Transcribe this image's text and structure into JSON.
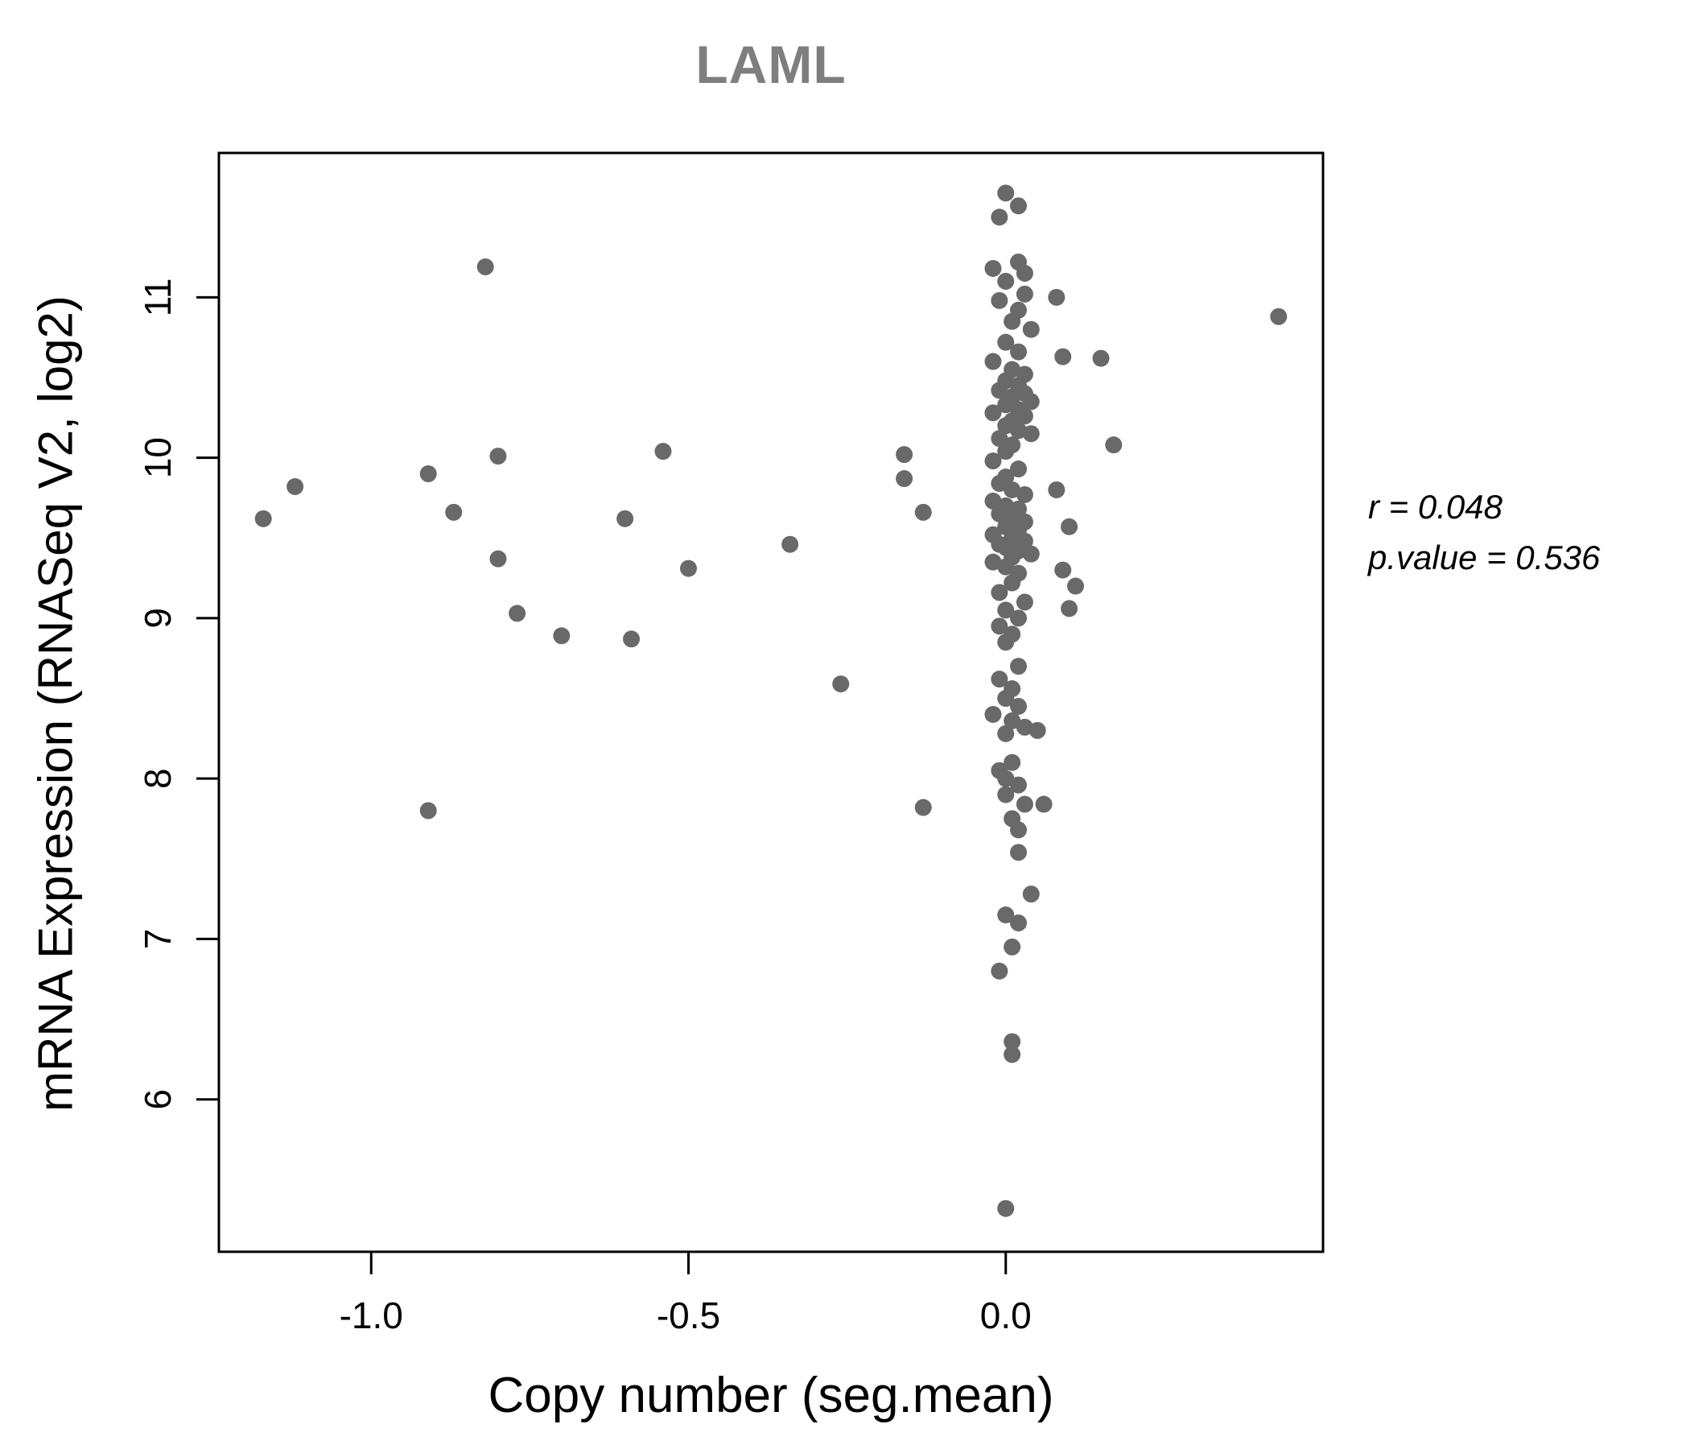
{
  "title": "LAML",
  "annotation": {
    "r_label": "r = 0.048",
    "p_label": "p.value = 0.536"
  },
  "style": {
    "point_color": "#696969",
    "title_color": "#7e7e7e",
    "axis_color": "#000000",
    "background": "#ffffff"
  },
  "chart_data": {
    "type": "scatter",
    "title": "LAML",
    "xlabel": "Copy number (seg.mean)",
    "ylabel": "mRNA Expression (RNASeq V2, log2)",
    "xlim": [
      -1.24,
      0.5
    ],
    "ylim": [
      5.05,
      11.9
    ],
    "x_ticks": [
      -1.0,
      -0.5,
      0.0
    ],
    "x_tick_labels": [
      "-1.0",
      "-0.5",
      "0.0"
    ],
    "y_ticks": [
      6,
      7,
      8,
      9,
      10,
      11
    ],
    "y_tick_labels": [
      "6",
      "7",
      "8",
      "9",
      "10",
      "11"
    ],
    "grid": false,
    "legend": "none",
    "r": 0.048,
    "p_value": 0.536,
    "points": [
      [
        -1.17,
        9.62
      ],
      [
        -1.12,
        9.82
      ],
      [
        -0.91,
        9.9
      ],
      [
        -0.91,
        7.8
      ],
      [
        -0.87,
        9.66
      ],
      [
        -0.82,
        11.19
      ],
      [
        -0.8,
        10.01
      ],
      [
        -0.8,
        9.37
      ],
      [
        -0.77,
        9.03
      ],
      [
        -0.7,
        8.89
      ],
      [
        -0.6,
        9.62
      ],
      [
        -0.59,
        8.87
      ],
      [
        -0.54,
        10.04
      ],
      [
        -0.5,
        9.31
      ],
      [
        -0.34,
        9.46
      ],
      [
        -0.26,
        8.59
      ],
      [
        -0.16,
        10.02
      ],
      [
        -0.16,
        9.87
      ],
      [
        -0.13,
        9.66
      ],
      [
        -0.13,
        7.82
      ],
      [
        0.43,
        10.88
      ],
      [
        0.17,
        10.08
      ],
      [
        0.15,
        10.62
      ],
      [
        0.09,
        10.63
      ],
      [
        0.08,
        11.0
      ],
      [
        0.08,
        9.8
      ],
      [
        0.1,
        9.57
      ],
      [
        0.09,
        9.3
      ],
      [
        0.11,
        9.2
      ],
      [
        0.1,
        9.06
      ],
      [
        0.0,
        11.65
      ],
      [
        0.02,
        11.57
      ],
      [
        -0.01,
        11.5
      ],
      [
        0.02,
        11.22
      ],
      [
        -0.02,
        11.18
      ],
      [
        0.03,
        11.15
      ],
      [
        0.0,
        11.1
      ],
      [
        0.03,
        11.02
      ],
      [
        -0.01,
        10.98
      ],
      [
        0.02,
        10.92
      ],
      [
        0.01,
        10.85
      ],
      [
        0.04,
        10.8
      ],
      [
        0.0,
        10.72
      ],
      [
        0.02,
        10.66
      ],
      [
        -0.02,
        10.6
      ],
      [
        0.01,
        10.55
      ],
      [
        0.03,
        10.52
      ],
      [
        0.0,
        10.48
      ],
      [
        0.02,
        10.45
      ],
      [
        -0.01,
        10.42
      ],
      [
        0.03,
        10.4
      ],
      [
        0.01,
        10.38
      ],
      [
        0.04,
        10.35
      ],
      [
        0.0,
        10.33
      ],
      [
        0.02,
        10.3
      ],
      [
        -0.02,
        10.28
      ],
      [
        0.03,
        10.26
      ],
      [
        0.01,
        10.23
      ],
      [
        0.0,
        10.2
      ],
      [
        0.02,
        10.17
      ],
      [
        0.04,
        10.15
      ],
      [
        -0.01,
        10.12
      ],
      [
        0.01,
        10.08
      ],
      [
        0.0,
        10.04
      ],
      [
        -0.02,
        9.98
      ],
      [
        0.02,
        9.93
      ],
      [
        0.0,
        9.88
      ],
      [
        -0.01,
        9.84
      ],
      [
        0.01,
        9.8
      ],
      [
        0.03,
        9.77
      ],
      [
        -0.02,
        9.73
      ],
      [
        0.0,
        9.7
      ],
      [
        0.02,
        9.68
      ],
      [
        -0.01,
        9.65
      ],
      [
        0.01,
        9.62
      ],
      [
        0.03,
        9.6
      ],
      [
        0.0,
        9.57
      ],
      [
        0.02,
        9.55
      ],
      [
        -0.02,
        9.52
      ],
      [
        0.01,
        9.5
      ],
      [
        0.03,
        9.48
      ],
      [
        -0.01,
        9.46
      ],
      [
        0.0,
        9.44
      ],
      [
        0.02,
        9.42
      ],
      [
        0.04,
        9.4
      ],
      [
        0.01,
        9.38
      ],
      [
        -0.02,
        9.35
      ],
      [
        0.0,
        9.32
      ],
      [
        0.02,
        9.28
      ],
      [
        0.01,
        9.22
      ],
      [
        -0.01,
        9.16
      ],
      [
        0.03,
        9.1
      ],
      [
        0.0,
        9.05
      ],
      [
        0.02,
        9.0
      ],
      [
        -0.01,
        8.95
      ],
      [
        0.01,
        8.9
      ],
      [
        0.0,
        8.85
      ],
      [
        0.02,
        8.7
      ],
      [
        -0.01,
        8.62
      ],
      [
        0.01,
        8.56
      ],
      [
        0.0,
        8.5
      ],
      [
        0.02,
        8.45
      ],
      [
        -0.02,
        8.4
      ],
      [
        0.01,
        8.36
      ],
      [
        0.03,
        8.32
      ],
      [
        0.0,
        8.28
      ],
      [
        0.05,
        8.3
      ],
      [
        0.01,
        8.1
      ],
      [
        -0.01,
        8.05
      ],
      [
        0.0,
        8.0
      ],
      [
        0.02,
        7.96
      ],
      [
        0.0,
        7.9
      ],
      [
        0.03,
        7.84
      ],
      [
        0.06,
        7.84
      ],
      [
        0.01,
        7.75
      ],
      [
        0.02,
        7.68
      ],
      [
        0.02,
        7.54
      ],
      [
        0.04,
        7.28
      ],
      [
        0.0,
        7.15
      ],
      [
        0.02,
        7.1
      ],
      [
        0.01,
        6.95
      ],
      [
        -0.01,
        6.8
      ],
      [
        0.01,
        6.36
      ],
      [
        0.01,
        6.28
      ],
      [
        0.0,
        5.32
      ]
    ]
  }
}
